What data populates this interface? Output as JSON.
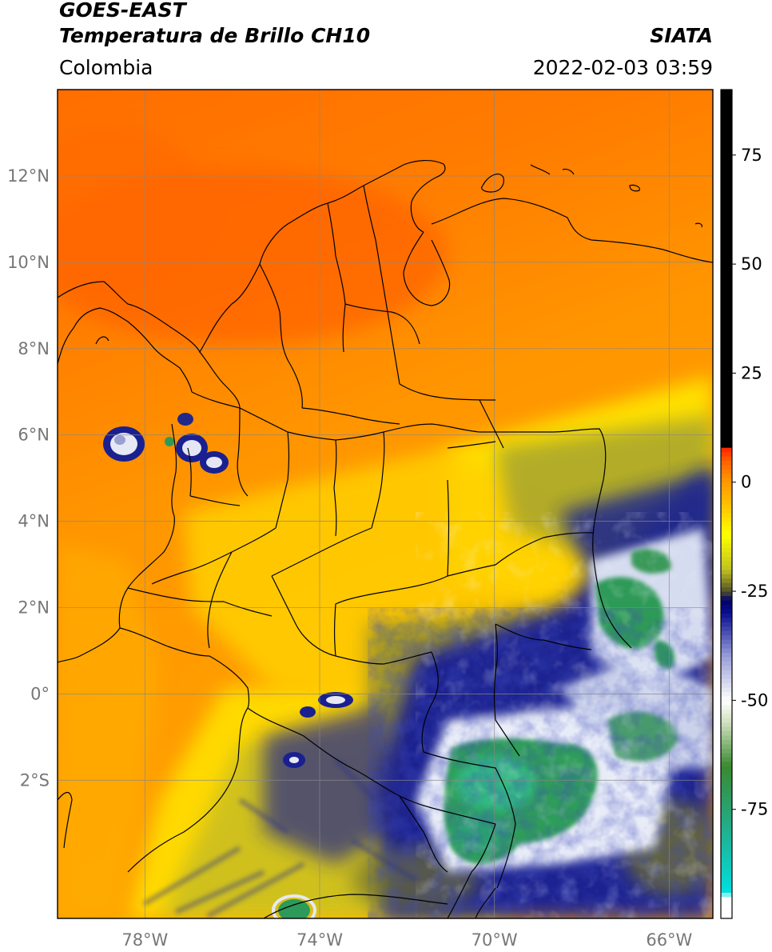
{
  "header": {
    "satellite": "GOES-EAST",
    "product": "Temperatura de Brillo CH10",
    "region": "Colombia",
    "agency": "SIATA",
    "datetime": "2022-02-03 03:59"
  },
  "map": {
    "lon_range": [
      -80,
      -65
    ],
    "lat_range": [
      -5.2,
      14
    ],
    "lat_ticks": [
      {
        "value": 12,
        "label": "12°N"
      },
      {
        "value": 10,
        "label": "10°N"
      },
      {
        "value": 8,
        "label": "8°N"
      },
      {
        "value": 6,
        "label": "6°N"
      },
      {
        "value": 4,
        "label": "4°N"
      },
      {
        "value": 2,
        "label": "2°N"
      },
      {
        "value": 0,
        "label": "0°"
      },
      {
        "value": -2,
        "label": "2°S"
      }
    ],
    "lon_ticks": [
      {
        "value": -78,
        "label": "78°W"
      },
      {
        "value": -74,
        "label": "74°W"
      },
      {
        "value": -70,
        "label": "70°W"
      },
      {
        "value": -66,
        "label": "66°W"
      }
    ],
    "gridlines": true
  },
  "colorbar": {
    "range": [
      -100,
      90
    ],
    "ticks": [
      {
        "value": 75,
        "label": "75"
      },
      {
        "value": 50,
        "label": "50"
      },
      {
        "value": 25,
        "label": "25"
      },
      {
        "value": 0,
        "label": "0"
      },
      {
        "value": -25,
        "label": "-25"
      },
      {
        "value": -50,
        "label": "-50"
      },
      {
        "value": -75,
        "label": "-75"
      }
    ],
    "stops": [
      {
        "value": -100,
        "color": "#ffffff"
      },
      {
        "value": -95,
        "color": "#ffffff"
      },
      {
        "value": -94,
        "color": "#00e0e0"
      },
      {
        "value": -80,
        "color": "#20b090"
      },
      {
        "value": -65,
        "color": "#3a8a30"
      },
      {
        "value": -55,
        "color": "#d0e0c0"
      },
      {
        "value": -50,
        "color": "#ffffff"
      },
      {
        "value": -40,
        "color": "#9aa0d8"
      },
      {
        "value": -30,
        "color": "#0a1090"
      },
      {
        "value": -27,
        "color": "#00006a"
      },
      {
        "value": -25,
        "color": "#50502a"
      },
      {
        "value": -20,
        "color": "#c0c020"
      },
      {
        "value": -12,
        "color": "#ffff00"
      },
      {
        "value": -5,
        "color": "#ffc000"
      },
      {
        "value": 0,
        "color": "#ff9a00"
      },
      {
        "value": 5,
        "color": "#ff6000"
      },
      {
        "value": 8,
        "color": "#ff2000"
      },
      {
        "value": 8.01,
        "color": "#000000"
      },
      {
        "value": 90,
        "color": "#000000"
      }
    ]
  },
  "colors": {
    "warm_ocean": "#ff8000",
    "warm_north": "#ff6a00",
    "cloud_dark": "#0a1090",
    "cloud_green": "#2eaa6a",
    "yellow": "#ffee00"
  }
}
